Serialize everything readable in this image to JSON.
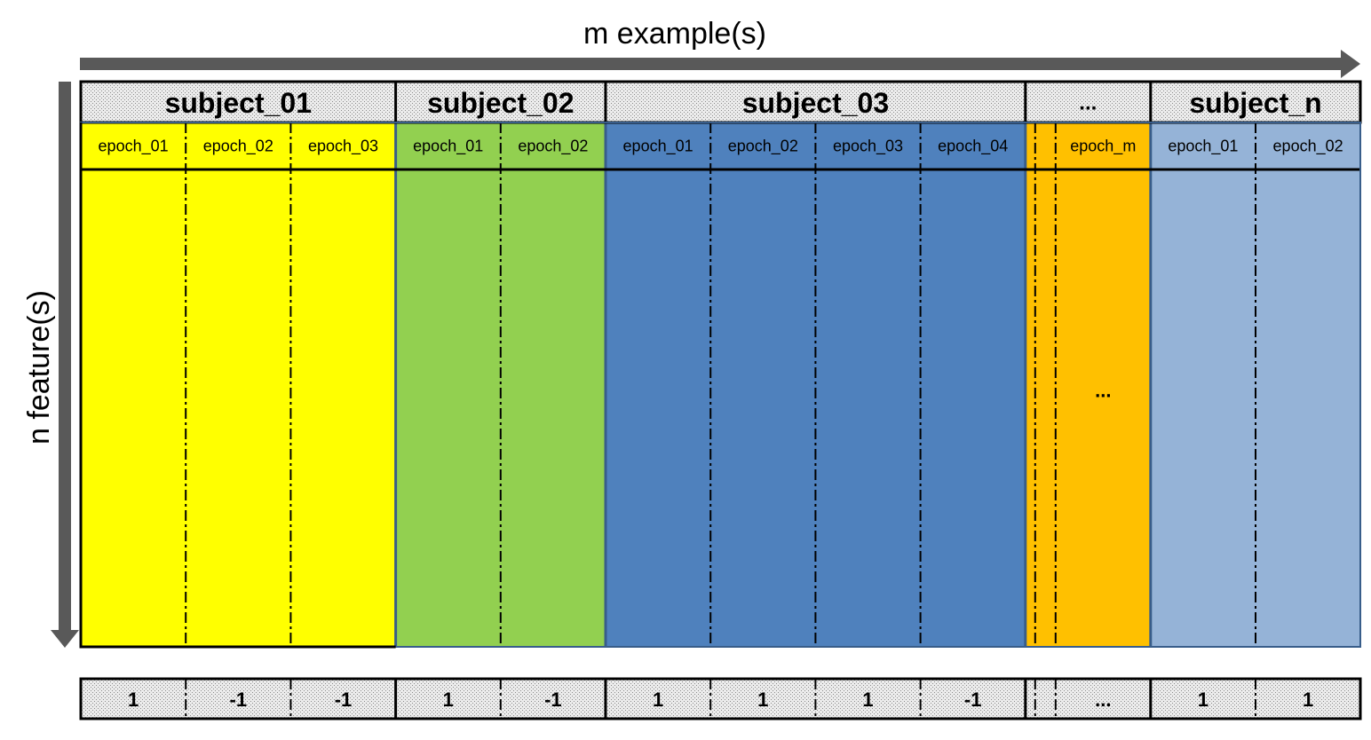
{
  "axes": {
    "x_label": "m example(s)",
    "y_label": "n feature(s)"
  },
  "subjects": [
    {
      "name": "subject_01",
      "color": "#ffff00",
      "epochs": [
        {
          "label": "epoch_01",
          "label_value": "1"
        },
        {
          "label": "epoch_02",
          "label_value": "-1"
        },
        {
          "label": "epoch_03",
          "label_value": "-1"
        }
      ]
    },
    {
      "name": "subject_02",
      "color": "#92d050",
      "epochs": [
        {
          "label": "epoch_01",
          "label_value": "1"
        },
        {
          "label": "epoch_02",
          "label_value": "-1"
        }
      ]
    },
    {
      "name": "subject_03",
      "color": "#4f81bd",
      "epochs": [
        {
          "label": "epoch_01",
          "label_value": "1"
        },
        {
          "label": "epoch_02",
          "label_value": "1"
        },
        {
          "label": "epoch_03",
          "label_value": "1"
        },
        {
          "label": "epoch_04",
          "label_value": "-1"
        }
      ]
    },
    {
      "name": "...",
      "color": "#ffc000",
      "epochs": [
        {
          "label": "",
          "label_value": ""
        },
        {
          "label": "",
          "label_value": ""
        },
        {
          "label": "epoch_m",
          "label_value": "...",
          "body_text": "..."
        }
      ]
    },
    {
      "name": "subject_n",
      "color": "#95b3d7",
      "epochs": [
        {
          "label": "epoch_01",
          "label_value": "1"
        },
        {
          "label": "epoch_02",
          "label_value": "1"
        }
      ]
    }
  ]
}
